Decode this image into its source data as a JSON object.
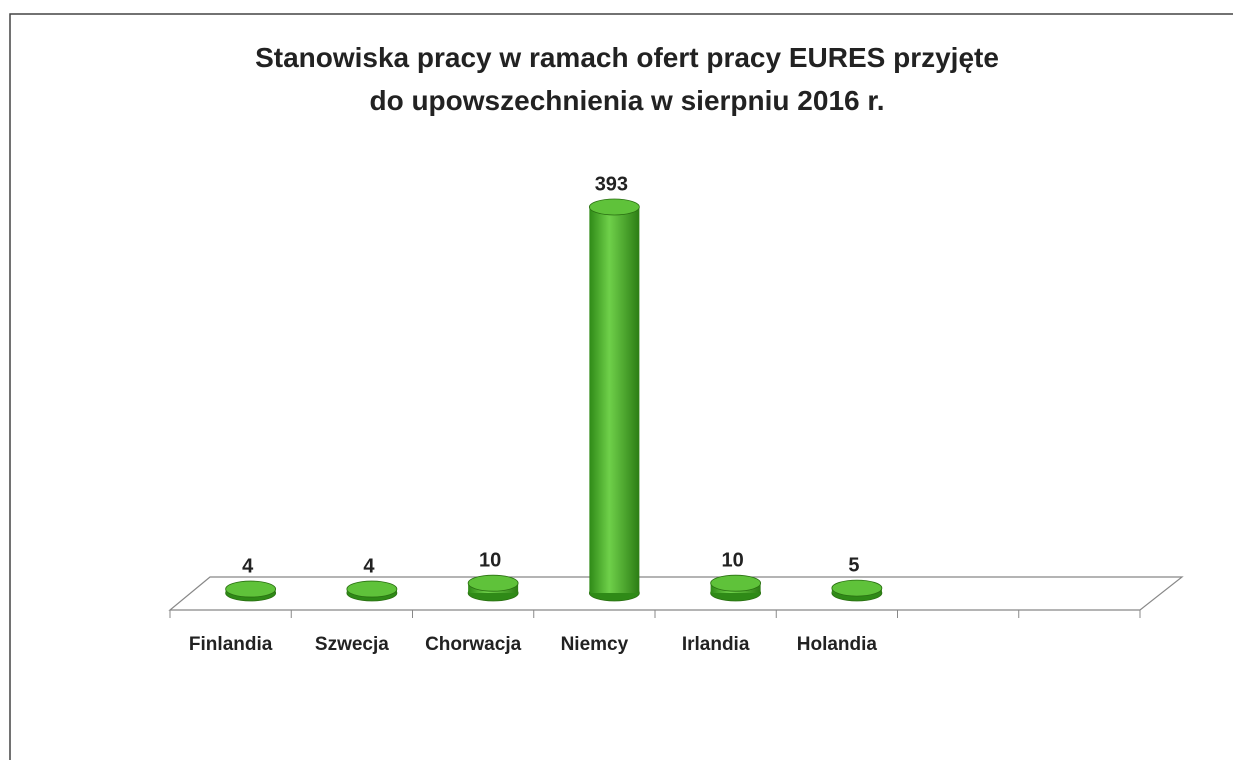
{
  "chart_data": {
    "type": "bar",
    "title": "Stanowiska pracy w ramach ofert pracy EURES przyjęte do upowszechnienia w sierpniu 2016 r.",
    "categories": [
      "Finlandia",
      "Szwecja",
      "Chorwacja",
      "Niemcy",
      "Irlandia",
      "Holandia",
      null,
      null
    ],
    "values": [
      4,
      4,
      10,
      393,
      10,
      5,
      null,
      null
    ],
    "color": "#4db52a"
  }
}
